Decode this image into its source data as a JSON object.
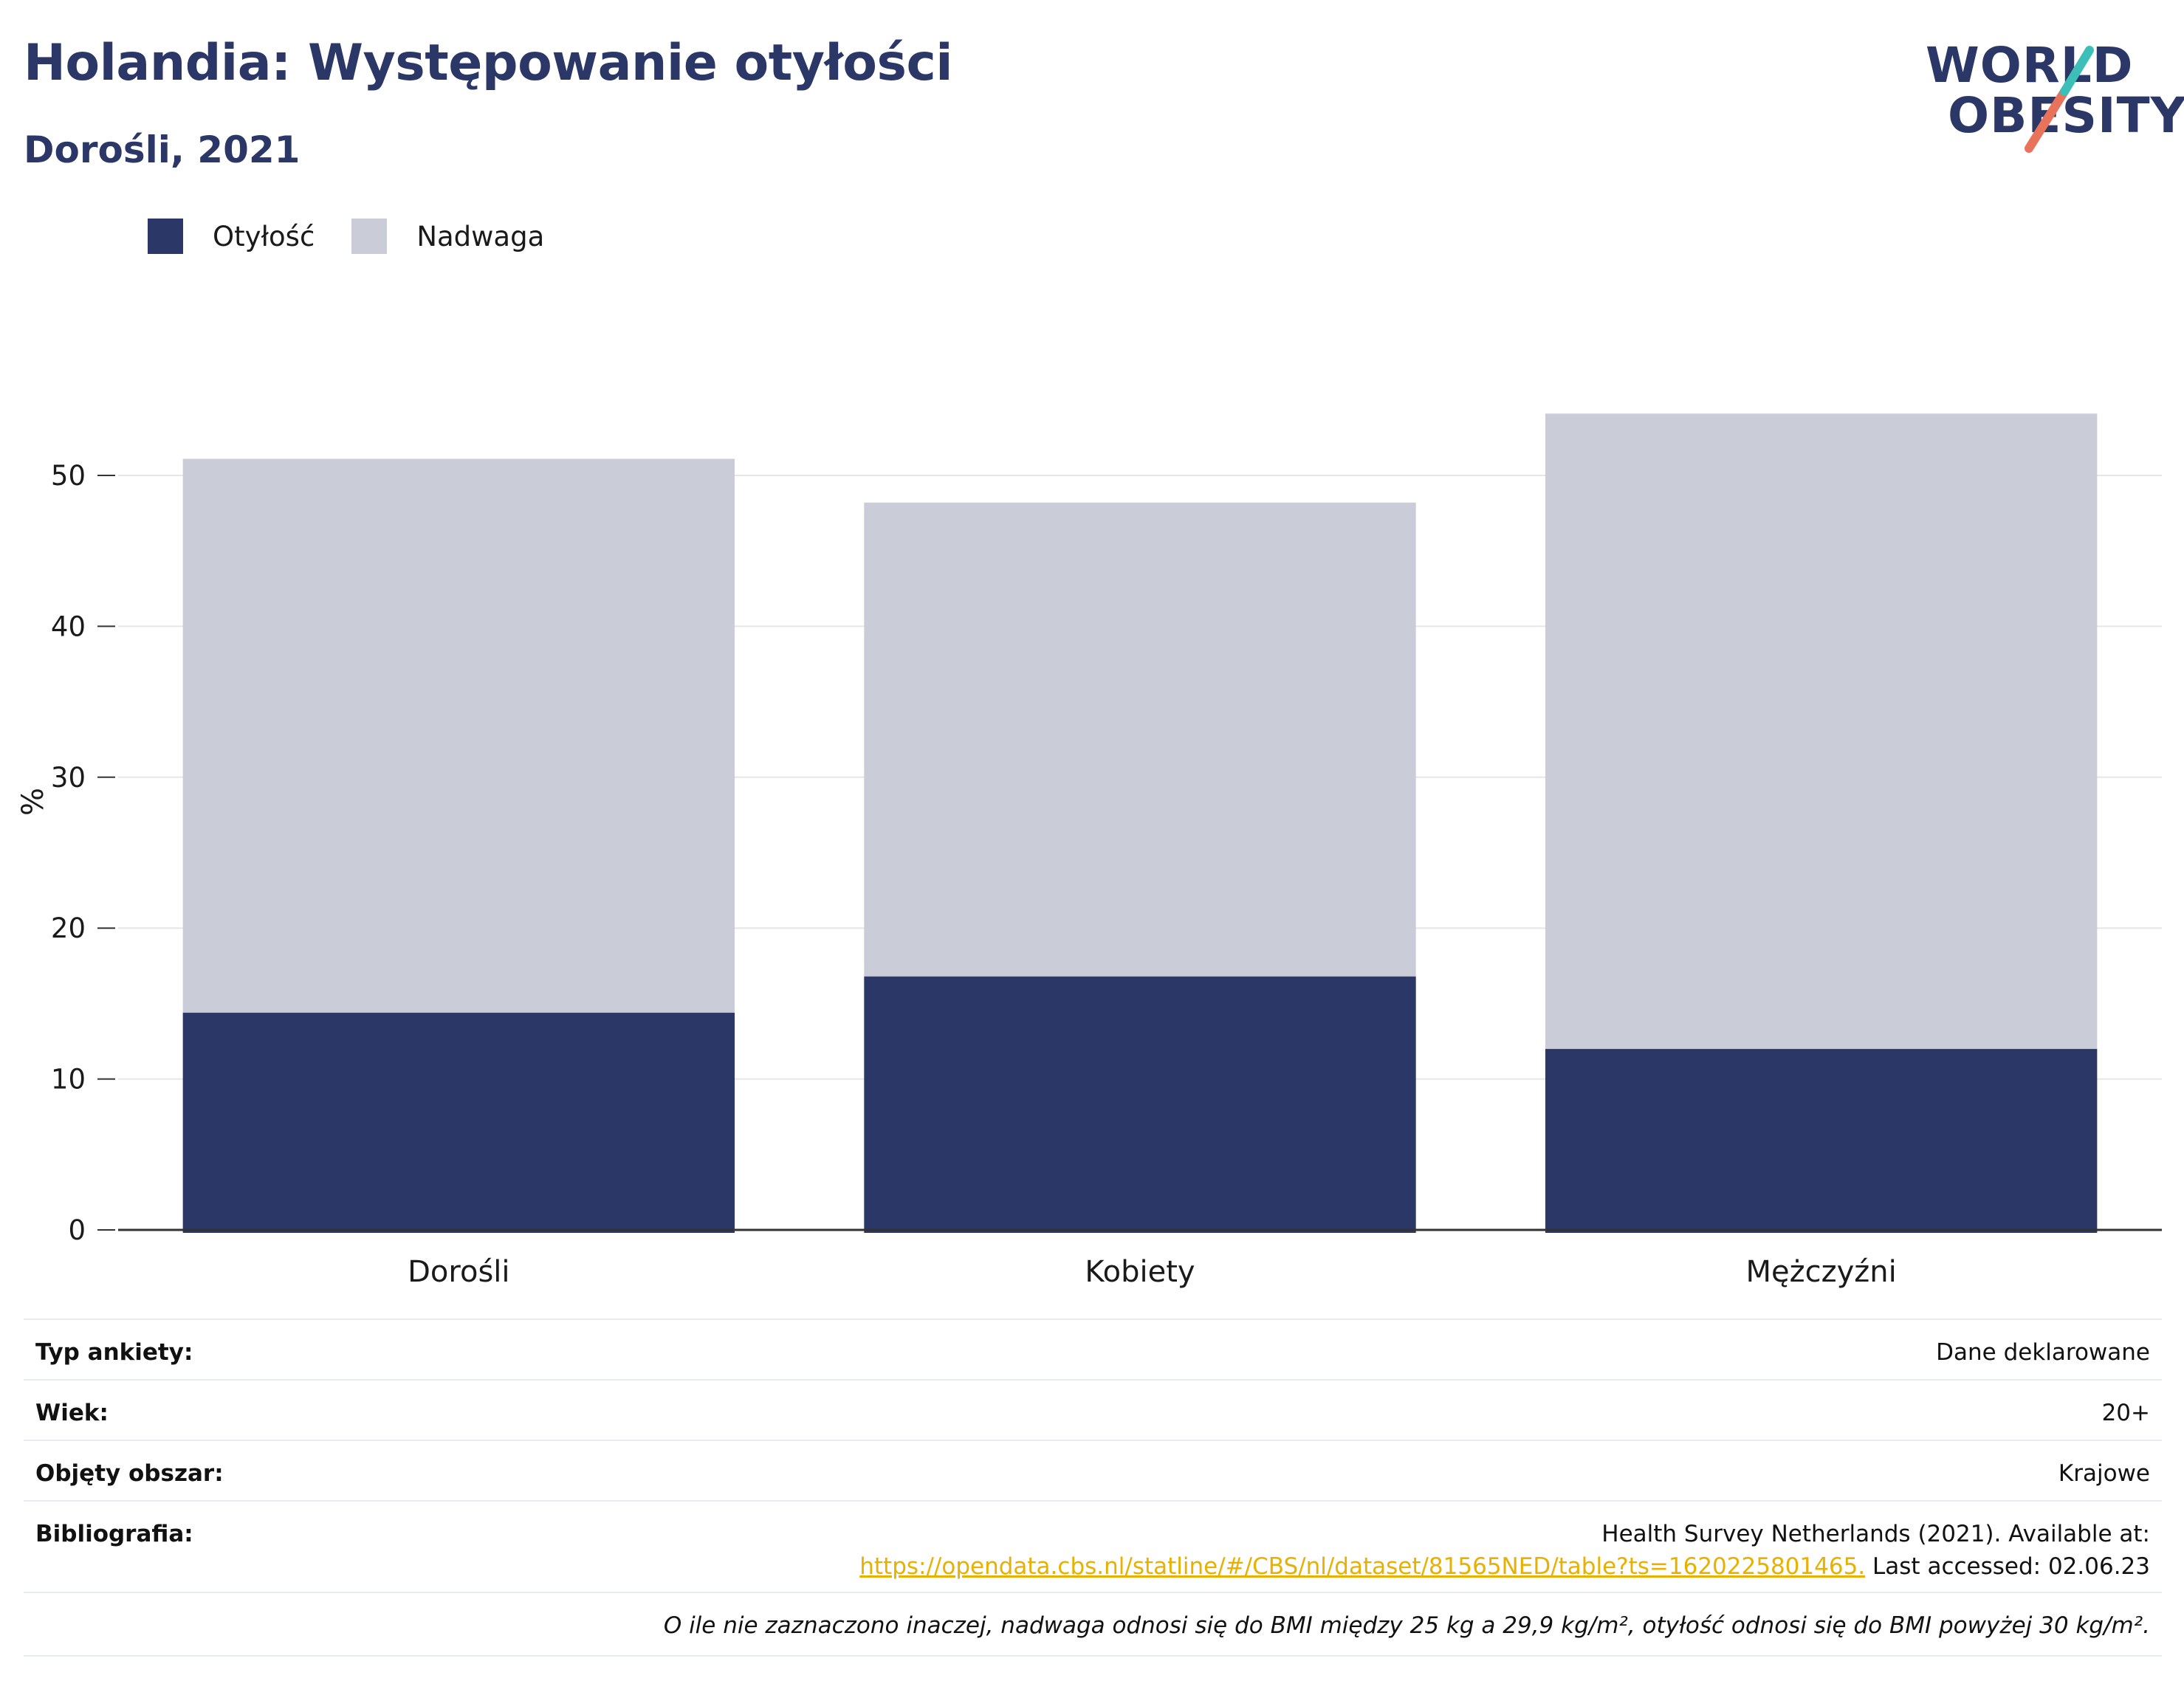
{
  "header": {
    "title": "Holandia: Występowanie otyłości",
    "subtitle": "Dorośli, 2021"
  },
  "logo": {
    "line1": "WORLD",
    "line2": "OBESITY"
  },
  "legend": [
    {
      "label": "Otyłość",
      "color": "#2b3766"
    },
    {
      "label": "Nadwaga",
      "color": "#cacdd8"
    }
  ],
  "chart_data": {
    "type": "bar",
    "stacked": true,
    "categories": [
      "Dorośli",
      "Kobiety",
      "Mężczyźni"
    ],
    "series": [
      {
        "name": "Otyłość",
        "values": [
          14.4,
          16.8,
          12.0
        ],
        "color": "#2b3766"
      },
      {
        "name": "Nadwaga",
        "values": [
          36.7,
          31.4,
          42.1
        ],
        "color": "#cacdd8"
      }
    ],
    "ylabel": "%",
    "ylim": [
      0,
      60
    ],
    "yticks": [
      0,
      10,
      20,
      30,
      40,
      50
    ],
    "grid": true,
    "legend_position": "top-left"
  },
  "info": {
    "survey_type_label": "Typ ankiety:",
    "survey_type_value": "Dane deklarowane",
    "age_label": "Wiek:",
    "age_value": "20+",
    "area_label": "Objęty obszar:",
    "area_value": "Krajowe",
    "bibliography_label": "Bibliografia:",
    "bibliography_text": "Health Survey Netherlands (2021). Available at:",
    "bibliography_link": "https://opendata.cbs.nl/statline/#/CBS/nl/dataset/81565NED/table?ts=1620225801465.",
    "bibliography_accessed": "Last accessed: 02.06.23",
    "note": "O ile nie zaznaczono inaczej, nadwaga odnosi się do BMI między 25 kg a 29,9 kg/m², otyłość odnosi się do BMI powyżej 30 kg/m²."
  }
}
